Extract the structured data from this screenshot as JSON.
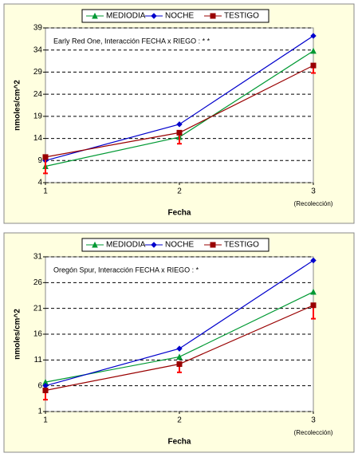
{
  "chart_data": [
    {
      "type": "line",
      "annotation": "Early Red One,    Interacción FECHA x RIEGO : * *",
      "x_label": "Fecha",
      "y_label": "nmoles/cm^2",
      "x_note": "(Recolección)",
      "x": [
        1,
        2,
        3
      ],
      "xlim": [
        1,
        3
      ],
      "xticks": [
        1,
        2,
        3
      ],
      "ylim": [
        4,
        39
      ],
      "yticks": [
        4,
        9,
        14,
        19,
        24,
        29,
        34,
        39
      ],
      "grid": true,
      "series": [
        {
          "name": "MEDIODIA",
          "color": "#009933",
          "marker": "triangle",
          "values": [
            7.7,
            14.3,
            33.8
          ]
        },
        {
          "name": "NOCHE",
          "color": "#0000cc",
          "marker": "diamond",
          "values": [
            9,
            17.2,
            37.2
          ]
        },
        {
          "name": "TESTIGO",
          "color": "#990000",
          "marker": "square",
          "values": [
            9.8,
            15.3,
            30.5
          ],
          "errors": [
            3.7,
            2.5,
            1.7
          ],
          "error_color": "#ff0000"
        }
      ]
    },
    {
      "type": "line",
      "annotation": "Oregón Spur,    Interacción FECHA x RIEGO : *",
      "x_label": "Fecha",
      "y_label": "nmoles/cm^2",
      "x_note": "(Recolección)",
      "x": [
        1,
        2,
        3
      ],
      "xlim": [
        1,
        3
      ],
      "xticks": [
        1,
        2,
        3
      ],
      "ylim": [
        1,
        31
      ],
      "yticks": [
        1,
        6,
        11,
        16,
        21,
        26,
        31
      ],
      "grid": true,
      "series": [
        {
          "name": "MEDIODIA",
          "color": "#009933",
          "marker": "triangle",
          "values": [
            6.7,
            11.6,
            24.2
          ]
        },
        {
          "name": "NOCHE",
          "color": "#0000cc",
          "marker": "diamond",
          "values": [
            6,
            13.2,
            30.3
          ]
        },
        {
          "name": "TESTIGO",
          "color": "#990000",
          "marker": "square",
          "values": [
            5.1,
            10.2,
            21.6
          ],
          "errors": [
            1.8,
            1.6,
            2.6
          ],
          "error_color": "#ff0000"
        }
      ]
    }
  ]
}
